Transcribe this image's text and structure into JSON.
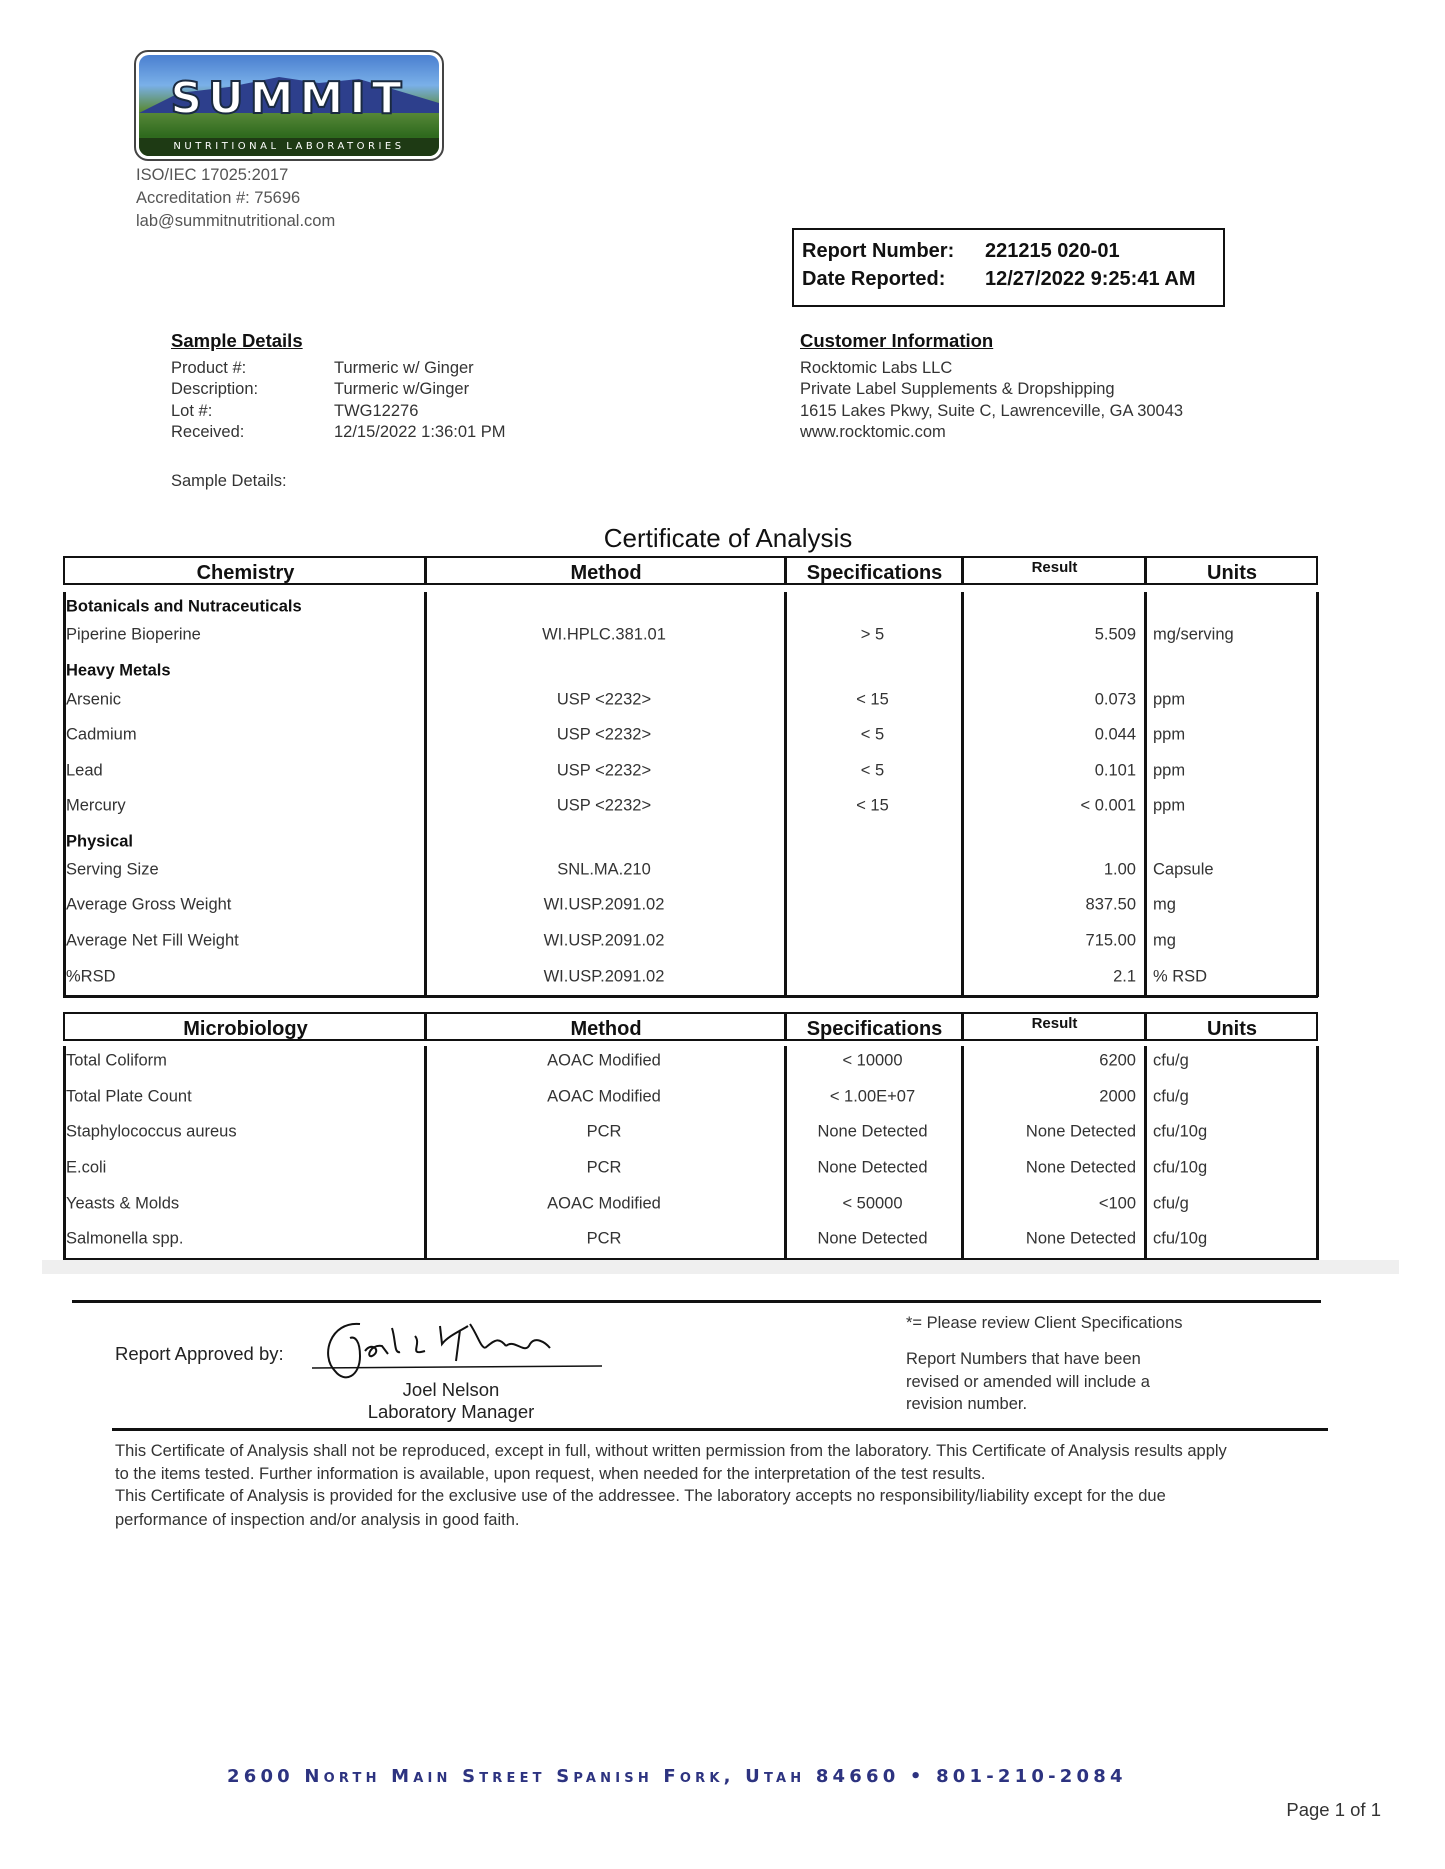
{
  "lab": {
    "logo_text": "SUMMIT",
    "logo_subtext": "NUTRITIONAL LABORATORIES",
    "iso": "ISO/IEC 17025:2017",
    "accreditation": "Accreditation #: 75696",
    "email": "lab@summitnutritional.com"
  },
  "report": {
    "number_label": "Report Number:",
    "number": "221215 020-01",
    "date_label": "Date Reported:",
    "date": "12/27/2022 9:25:41 AM"
  },
  "sample": {
    "heading": "Sample Details",
    "rows": [
      {
        "label": "Product #:",
        "value": "Turmeric w/ Ginger"
      },
      {
        "label": "Description:",
        "value": "Turmeric w/Ginger"
      },
      {
        "label": "Lot #:",
        "value": "TWG12276"
      },
      {
        "label": "Received:",
        "value": "12/15/2022 1:36:01 PM"
      }
    ],
    "details_label": "Sample Details:"
  },
  "customer": {
    "heading": "Customer Information",
    "lines": [
      "Rocktomic Labs LLC",
      "Private Label Supplements & Dropshipping",
      "1615 Lakes Pkwy, Suite C, Lawrenceville, GA 30043",
      "www.rocktomic.com"
    ]
  },
  "certificate_title": "Certificate of Analysis",
  "tables": [
    {
      "headers": [
        "Chemistry",
        "Method",
        "Specifications",
        "Result",
        "Units"
      ],
      "rows": [
        {
          "section": "Botanicals and Nutraceuticals"
        },
        {
          "cells": [
            "Piperine Bioperine",
            "WI.HPLC.381.01",
            "> 5",
            "5.509",
            "mg/serving"
          ]
        },
        {
          "section": "Heavy Metals"
        },
        {
          "cells": [
            "Arsenic",
            "USP <2232>",
            "< 15",
            "0.073",
            "ppm"
          ]
        },
        {
          "cells": [
            "Cadmium",
            "USP <2232>",
            "< 5",
            "0.044",
            "ppm"
          ]
        },
        {
          "cells": [
            "Lead",
            "USP <2232>",
            "< 5",
            "0.101",
            "ppm"
          ]
        },
        {
          "cells": [
            "Mercury",
            "USP <2232>",
            "< 15",
            "< 0.001",
            "ppm"
          ]
        },
        {
          "section": "Physical"
        },
        {
          "cells": [
            "Serving Size",
            "SNL.MA.210",
            "",
            "1.00",
            "Capsule"
          ]
        },
        {
          "cells": [
            "Average Gross Weight",
            "WI.USP.2091.02",
            "",
            "837.50",
            "mg"
          ]
        },
        {
          "cells": [
            "Average Net Fill Weight",
            "WI.USP.2091.02",
            "",
            "715.00",
            "mg"
          ]
        },
        {
          "cells": [
            "%RSD",
            "WI.USP.2091.02",
            "",
            "2.1",
            "% RSD"
          ]
        }
      ]
    },
    {
      "headers": [
        "Microbiology",
        "Method",
        "Specifications",
        "Result",
        "Units"
      ],
      "rows": [
        {
          "cells": [
            "Total Coliform",
            "AOAC Modified",
            "< 10000",
            "6200",
            "cfu/g"
          ]
        },
        {
          "cells": [
            "Total Plate Count",
            "AOAC Modified",
            "< 1.00E+07",
            "2000",
            "cfu/g"
          ]
        },
        {
          "cells": [
            "Staphylococcus aureus",
            "PCR",
            "None Detected",
            "None Detected",
            "cfu/10g"
          ]
        },
        {
          "cells": [
            "E.coli",
            "PCR",
            "None Detected",
            "None Detected",
            "cfu/10g"
          ]
        },
        {
          "cells": [
            "Yeasts & Molds",
            "AOAC Modified",
            "< 50000",
            "<100",
            "cfu/g"
          ]
        },
        {
          "cells": [
            "Salmonella spp.",
            "PCR",
            "None Detected",
            "None Detected",
            "cfu/10g"
          ]
        }
      ]
    }
  ],
  "approval": {
    "label": "Report Approved by:",
    "signature": "Joel L Nelson",
    "name": "Joel Nelson",
    "title": "Laboratory Manager"
  },
  "notes": {
    "client_spec": "*= Please review Client Specifications",
    "revision": [
      "Report Numbers that have been",
      "revised or amended will include a",
      "revision number."
    ]
  },
  "disclaimer": [
    "This Certificate of Analysis shall not be reproduced, except in full, without written permission from the laboratory. This Certificate of Analysis results apply",
    "to the items tested. Further information is available, upon request, when needed for the interpretation of the test results.",
    "This Certificate of Analysis is provided for the exclusive use of the addressee. The laboratory accepts no responsibility/liability except for the due",
    "performance of inspection and/or analysis in good faith."
  ],
  "footer": {
    "address": "2600 North Main Street Spanish Fork, Utah 84660 • 801-210-2084",
    "page": "Page 1 of 1"
  }
}
